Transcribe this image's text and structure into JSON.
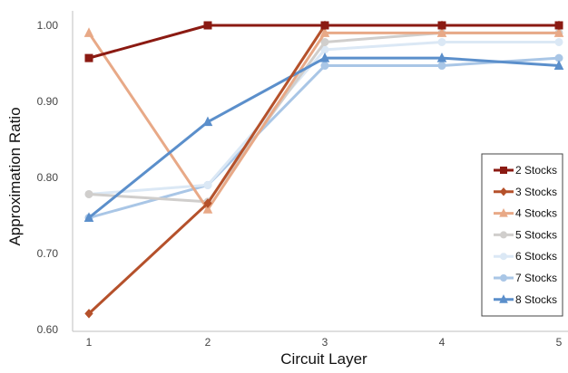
{
  "chart_data": {
    "type": "line",
    "xlabel": "Circuit Layer",
    "ylabel": "Approximation Ratio",
    "x": [
      1,
      2,
      3,
      4,
      5
    ],
    "xticks": [
      "1",
      "2",
      "3",
      "4",
      "5"
    ],
    "yticks": [
      "0.60",
      "0.70",
      "0.80",
      "0.90",
      "1.00"
    ],
    "ylim": [
      0.6,
      1.0
    ],
    "grid": false,
    "legend_position": "right",
    "series": [
      {
        "name": "2 Stocks",
        "values": [
          0.957,
          1.0,
          1.0,
          1.0,
          1.0
        ],
        "color": "#8b1a12",
        "marker": "square"
      },
      {
        "name": "3 Stocks",
        "values": [
          0.621,
          0.766,
          1.0,
          1.0,
          1.0
        ],
        "color": "#b5512b",
        "marker": "diamond"
      },
      {
        "name": "4 Stocks",
        "values": [
          0.99,
          0.758,
          0.99,
          0.99,
          0.99
        ],
        "color": "#e8a987",
        "marker": "triangle"
      },
      {
        "name": "5 Stocks",
        "values": [
          0.778,
          0.768,
          0.978,
          0.99,
          0.99
        ],
        "color": "#d0cecc",
        "marker": "circle"
      },
      {
        "name": "6 Stocks",
        "values": [
          0.778,
          0.79,
          0.968,
          0.978,
          0.978
        ],
        "color": "#dbe8f5",
        "marker": "circle"
      },
      {
        "name": "7 Stocks",
        "values": [
          0.747,
          0.79,
          0.947,
          0.947,
          0.957
        ],
        "color": "#a9c6e6",
        "marker": "circle"
      },
      {
        "name": "8 Stocks",
        "values": [
          0.747,
          0.873,
          0.957,
          0.957,
          0.947
        ],
        "color": "#5b8fcb",
        "marker": "triangle"
      }
    ]
  }
}
